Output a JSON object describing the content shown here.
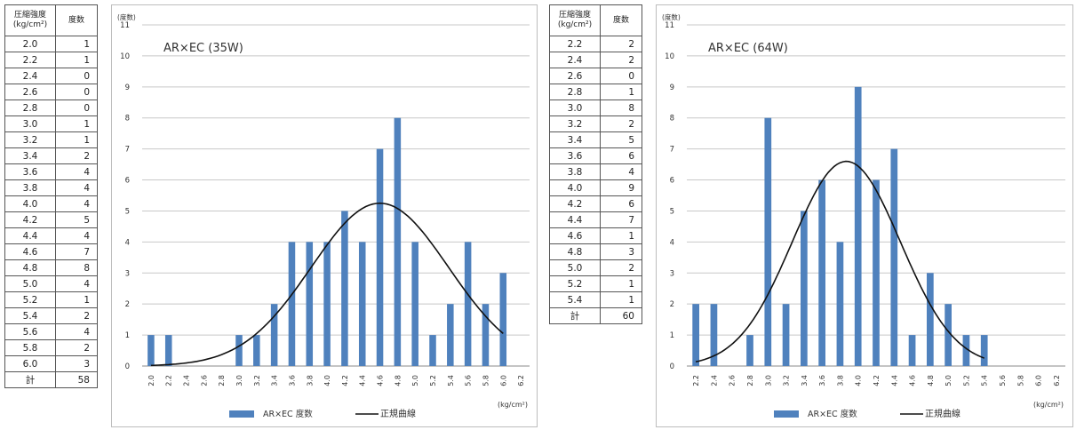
{
  "tables": [
    {
      "header_strength": "圧縮強度\n(kg/cm²)",
      "header_freq": "度数",
      "rows": [
        [
          "2.0",
          "1"
        ],
        [
          "2.2",
          "1"
        ],
        [
          "2.4",
          "0"
        ],
        [
          "2.6",
          "0"
        ],
        [
          "2.8",
          "0"
        ],
        [
          "3.0",
          "1"
        ],
        [
          "3.2",
          "1"
        ],
        [
          "3.4",
          "2"
        ],
        [
          "3.6",
          "4"
        ],
        [
          "3.8",
          "4"
        ],
        [
          "4.0",
          "4"
        ],
        [
          "4.2",
          "5"
        ],
        [
          "4.4",
          "4"
        ],
        [
          "4.6",
          "7"
        ],
        [
          "4.8",
          "8"
        ],
        [
          "5.0",
          "4"
        ],
        [
          "5.2",
          "1"
        ],
        [
          "5.4",
          "2"
        ],
        [
          "5.6",
          "4"
        ],
        [
          "5.8",
          "2"
        ],
        [
          "6.0",
          "3"
        ]
      ],
      "total_label": "計",
      "total_value": "58"
    },
    {
      "header_strength": "圧縮強度\n(kg/cm²)",
      "header_freq": "度数",
      "rows": [
        [
          "2.2",
          "2"
        ],
        [
          "2.4",
          "2"
        ],
        [
          "2.6",
          "0"
        ],
        [
          "2.8",
          "1"
        ],
        [
          "3.0",
          "8"
        ],
        [
          "3.2",
          "2"
        ],
        [
          "3.4",
          "5"
        ],
        [
          "3.6",
          "6"
        ],
        [
          "3.8",
          "4"
        ],
        [
          "4.0",
          "9"
        ],
        [
          "4.2",
          "6"
        ],
        [
          "4.4",
          "7"
        ],
        [
          "4.6",
          "1"
        ],
        [
          "4.8",
          "3"
        ],
        [
          "5.0",
          "2"
        ],
        [
          "5.2",
          "1"
        ],
        [
          "5.4",
          "1"
        ]
      ],
      "total_label": "計",
      "total_value": "60"
    }
  ],
  "chart_data": [
    {
      "type": "bar",
      "title": "AR×EC (35W)",
      "ylabel": "(度数)",
      "xlabel": "(kg/cm²)",
      "categories": [
        "2.0",
        "2.2",
        "2.4",
        "2.6",
        "2.8",
        "3.0",
        "3.2",
        "3.4",
        "3.6",
        "3.8",
        "4.0",
        "4.2",
        "4.4",
        "4.6",
        "4.8",
        "5.0",
        "5.2",
        "5.4",
        "5.6",
        "5.8",
        "6.0",
        "6.2"
      ],
      "yticks": [
        "0",
        "1",
        "2",
        "3",
        "4",
        "5",
        "6",
        "7",
        "8",
        "9",
        "10",
        "11"
      ],
      "ylim": [
        0,
        11
      ],
      "grid": true,
      "legend_position": "bottom",
      "series": [
        {
          "name": "AR×EC 度数",
          "type": "bar",
          "color": "#4f81bd",
          "values": [
            1,
            1,
            0,
            0,
            0,
            1,
            1,
            2,
            4,
            4,
            4,
            5,
            4,
            7,
            8,
            4,
            1,
            2,
            4,
            2,
            3,
            0
          ]
        },
        {
          "name": "正規曲線",
          "type": "line",
          "color": "#111111",
          "curve": {
            "mean": 4.6,
            "peak": 5.25,
            "sigma": 0.78,
            "x_start": 2.0,
            "x_end": 6.0
          }
        }
      ]
    },
    {
      "type": "bar",
      "title": "AR×EC (64W)",
      "ylabel": "(度数)",
      "xlabel": "(kg/cm²)",
      "categories": [
        "2.2",
        "2.4",
        "2.6",
        "2.8",
        "3.0",
        "3.2",
        "3.4",
        "3.6",
        "3.8",
        "4.0",
        "4.2",
        "4.4",
        "4.6",
        "4.8",
        "5.0",
        "5.2",
        "5.4",
        "5.6",
        "5.8",
        "6.0",
        "6.2"
      ],
      "yticks": [
        "0",
        "1",
        "2",
        "3",
        "4",
        "5",
        "6",
        "7",
        "8",
        "9",
        "10",
        "11"
      ],
      "ylim": [
        0,
        11
      ],
      "grid": true,
      "legend_position": "bottom",
      "series": [
        {
          "name": "AR×EC 度数",
          "type": "bar",
          "color": "#4f81bd",
          "values": [
            2,
            2,
            0,
            1,
            8,
            2,
            5,
            6,
            4,
            9,
            6,
            7,
            1,
            3,
            2,
            1,
            1,
            0,
            0,
            0,
            0
          ]
        },
        {
          "name": "正規曲線",
          "type": "line",
          "color": "#111111",
          "curve": {
            "mean": 3.87,
            "peak": 6.6,
            "sigma": 0.6,
            "x_start": 2.2,
            "x_end": 5.4
          }
        }
      ]
    }
  ]
}
